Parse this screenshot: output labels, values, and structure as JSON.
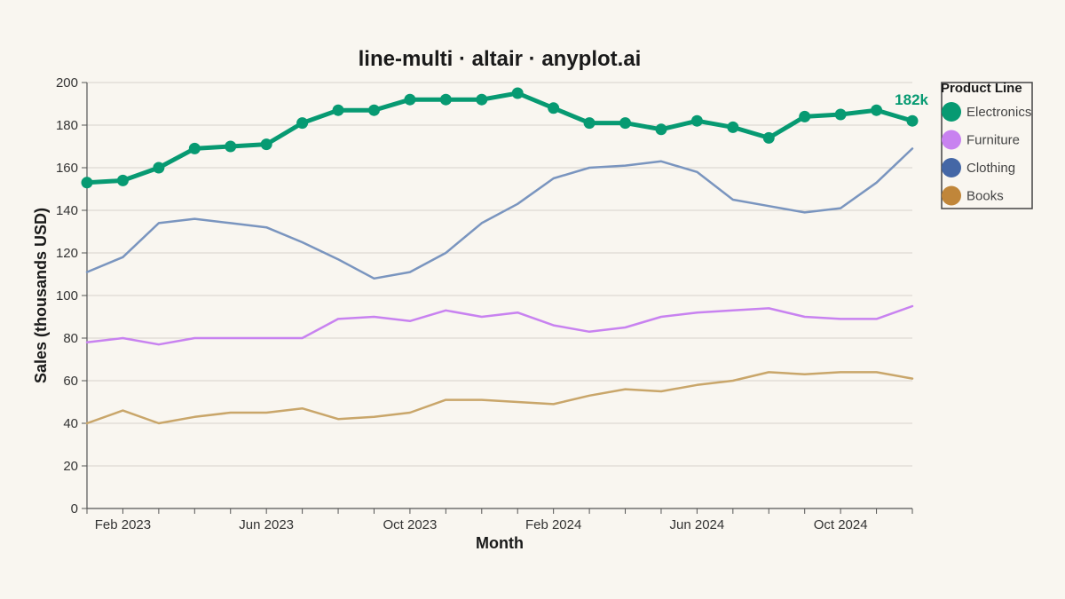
{
  "chart_data": {
    "type": "line",
    "title": "line-multi · altair · anyplot.ai",
    "xlabel": "Month",
    "ylabel": "Sales (thousands USD)",
    "ylim": [
      0,
      200
    ],
    "y_ticks": [
      0,
      20,
      40,
      60,
      80,
      100,
      120,
      140,
      160,
      180,
      200
    ],
    "x": [
      "2023-01",
      "2023-02",
      "2023-03",
      "2023-04",
      "2023-05",
      "2023-06",
      "2023-07",
      "2023-08",
      "2023-09",
      "2023-10",
      "2023-11",
      "2023-12",
      "2024-01",
      "2024-02",
      "2024-03",
      "2024-04",
      "2024-05",
      "2024-06",
      "2024-07",
      "2024-08",
      "2024-09",
      "2024-10",
      "2024-11",
      "2024-12"
    ],
    "x_tick_labels": [
      {
        "x": "2023-02",
        "label": "Feb 2023"
      },
      {
        "x": "2023-06",
        "label": "Jun 2023"
      },
      {
        "x": "2023-10",
        "label": "Oct 2023"
      },
      {
        "x": "2024-02",
        "label": "Feb 2024"
      },
      {
        "x": "2024-06",
        "label": "Jun 2024"
      },
      {
        "x": "2024-10",
        "label": "Oct 2024"
      }
    ],
    "grid": true,
    "legend_title": "Product Line",
    "legend_position": "top-right",
    "series": [
      {
        "name": "Electronics",
        "color": "#079a72",
        "emphasis": true,
        "values": [
          153,
          154,
          160,
          169,
          170,
          171,
          181,
          187,
          187,
          192,
          192,
          192,
          195,
          188,
          181,
          181,
          178,
          182,
          179,
          174,
          184,
          185,
          187,
          182
        ]
      },
      {
        "name": "Furniture",
        "color": "#c882f0",
        "values": [
          78,
          80,
          77,
          80,
          80,
          80,
          80,
          89,
          90,
          88,
          93,
          90,
          92,
          86,
          83,
          85,
          90,
          92,
          93,
          94,
          90,
          89,
          89,
          95
        ]
      },
      {
        "name": "Clothing",
        "color": "#4467a6",
        "line_color": "#7a95bf",
        "values": [
          111,
          118,
          134,
          136,
          134,
          132,
          125,
          117,
          108,
          111,
          120,
          134,
          143,
          155,
          160,
          161,
          163,
          158,
          145,
          142,
          139,
          141,
          153,
          169
        ]
      },
      {
        "name": "Books",
        "color": "#c0863a",
        "line_color": "#c9a66a",
        "values": [
          40,
          46,
          40,
          43,
          45,
          45,
          47,
          42,
          43,
          45,
          51,
          51,
          50,
          49,
          53,
          56,
          55,
          58,
          60,
          64,
          63,
          64,
          64,
          61
        ]
      }
    ],
    "annotations": [
      {
        "series": "Electronics",
        "x": "2024-12",
        "text": "182k"
      }
    ]
  }
}
